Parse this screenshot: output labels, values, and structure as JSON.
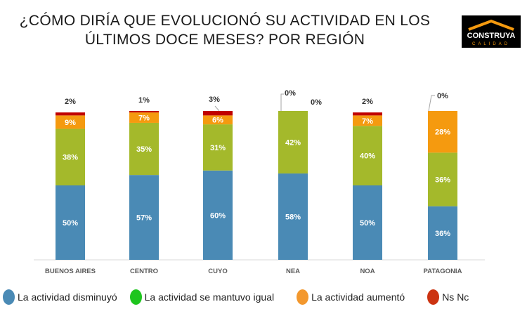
{
  "title_line1": "¿CÓMO DIRÍA QUE EVOLUCIONÓ SU ACTIVIDAD EN LOS",
  "title_line2": "ÚLTIMOS DOCE MESES? POR REGIÓN",
  "logo": {
    "name": "CONSTRUYA",
    "sub": "CALIDAD"
  },
  "colors": {
    "disminuyo": "#4a8ab5",
    "igual": "#a4b92b",
    "aumento": "#f59a0f",
    "nsnc": "#c00000",
    "legend_igual": "#1ec51e",
    "legend_aumento": "#f3982e",
    "legend_nsnc": "#cc3311"
  },
  "chart_data": {
    "type": "bar",
    "stacked": true,
    "categories": [
      "BUENOS AIRES",
      "CENTRO",
      "CUYO",
      "NEA",
      "NOA",
      "PATAGONIA"
    ],
    "series": [
      {
        "name": "La actividad disminuyó",
        "values": [
          50,
          57,
          60,
          58,
          50,
          36
        ]
      },
      {
        "name": "La actividad se mantuvo igual",
        "values": [
          38,
          35,
          31,
          42,
          40,
          36
        ]
      },
      {
        "name": "La actividad aumentó",
        "values": [
          9,
          7,
          6,
          0,
          7,
          28
        ]
      },
      {
        "name": "Ns Nc",
        "values": [
          2,
          1,
          3,
          0,
          2,
          0
        ]
      }
    ],
    "ylim": [
      0,
      100
    ],
    "unit": "%",
    "legend_position": "bottom",
    "grid": false
  }
}
